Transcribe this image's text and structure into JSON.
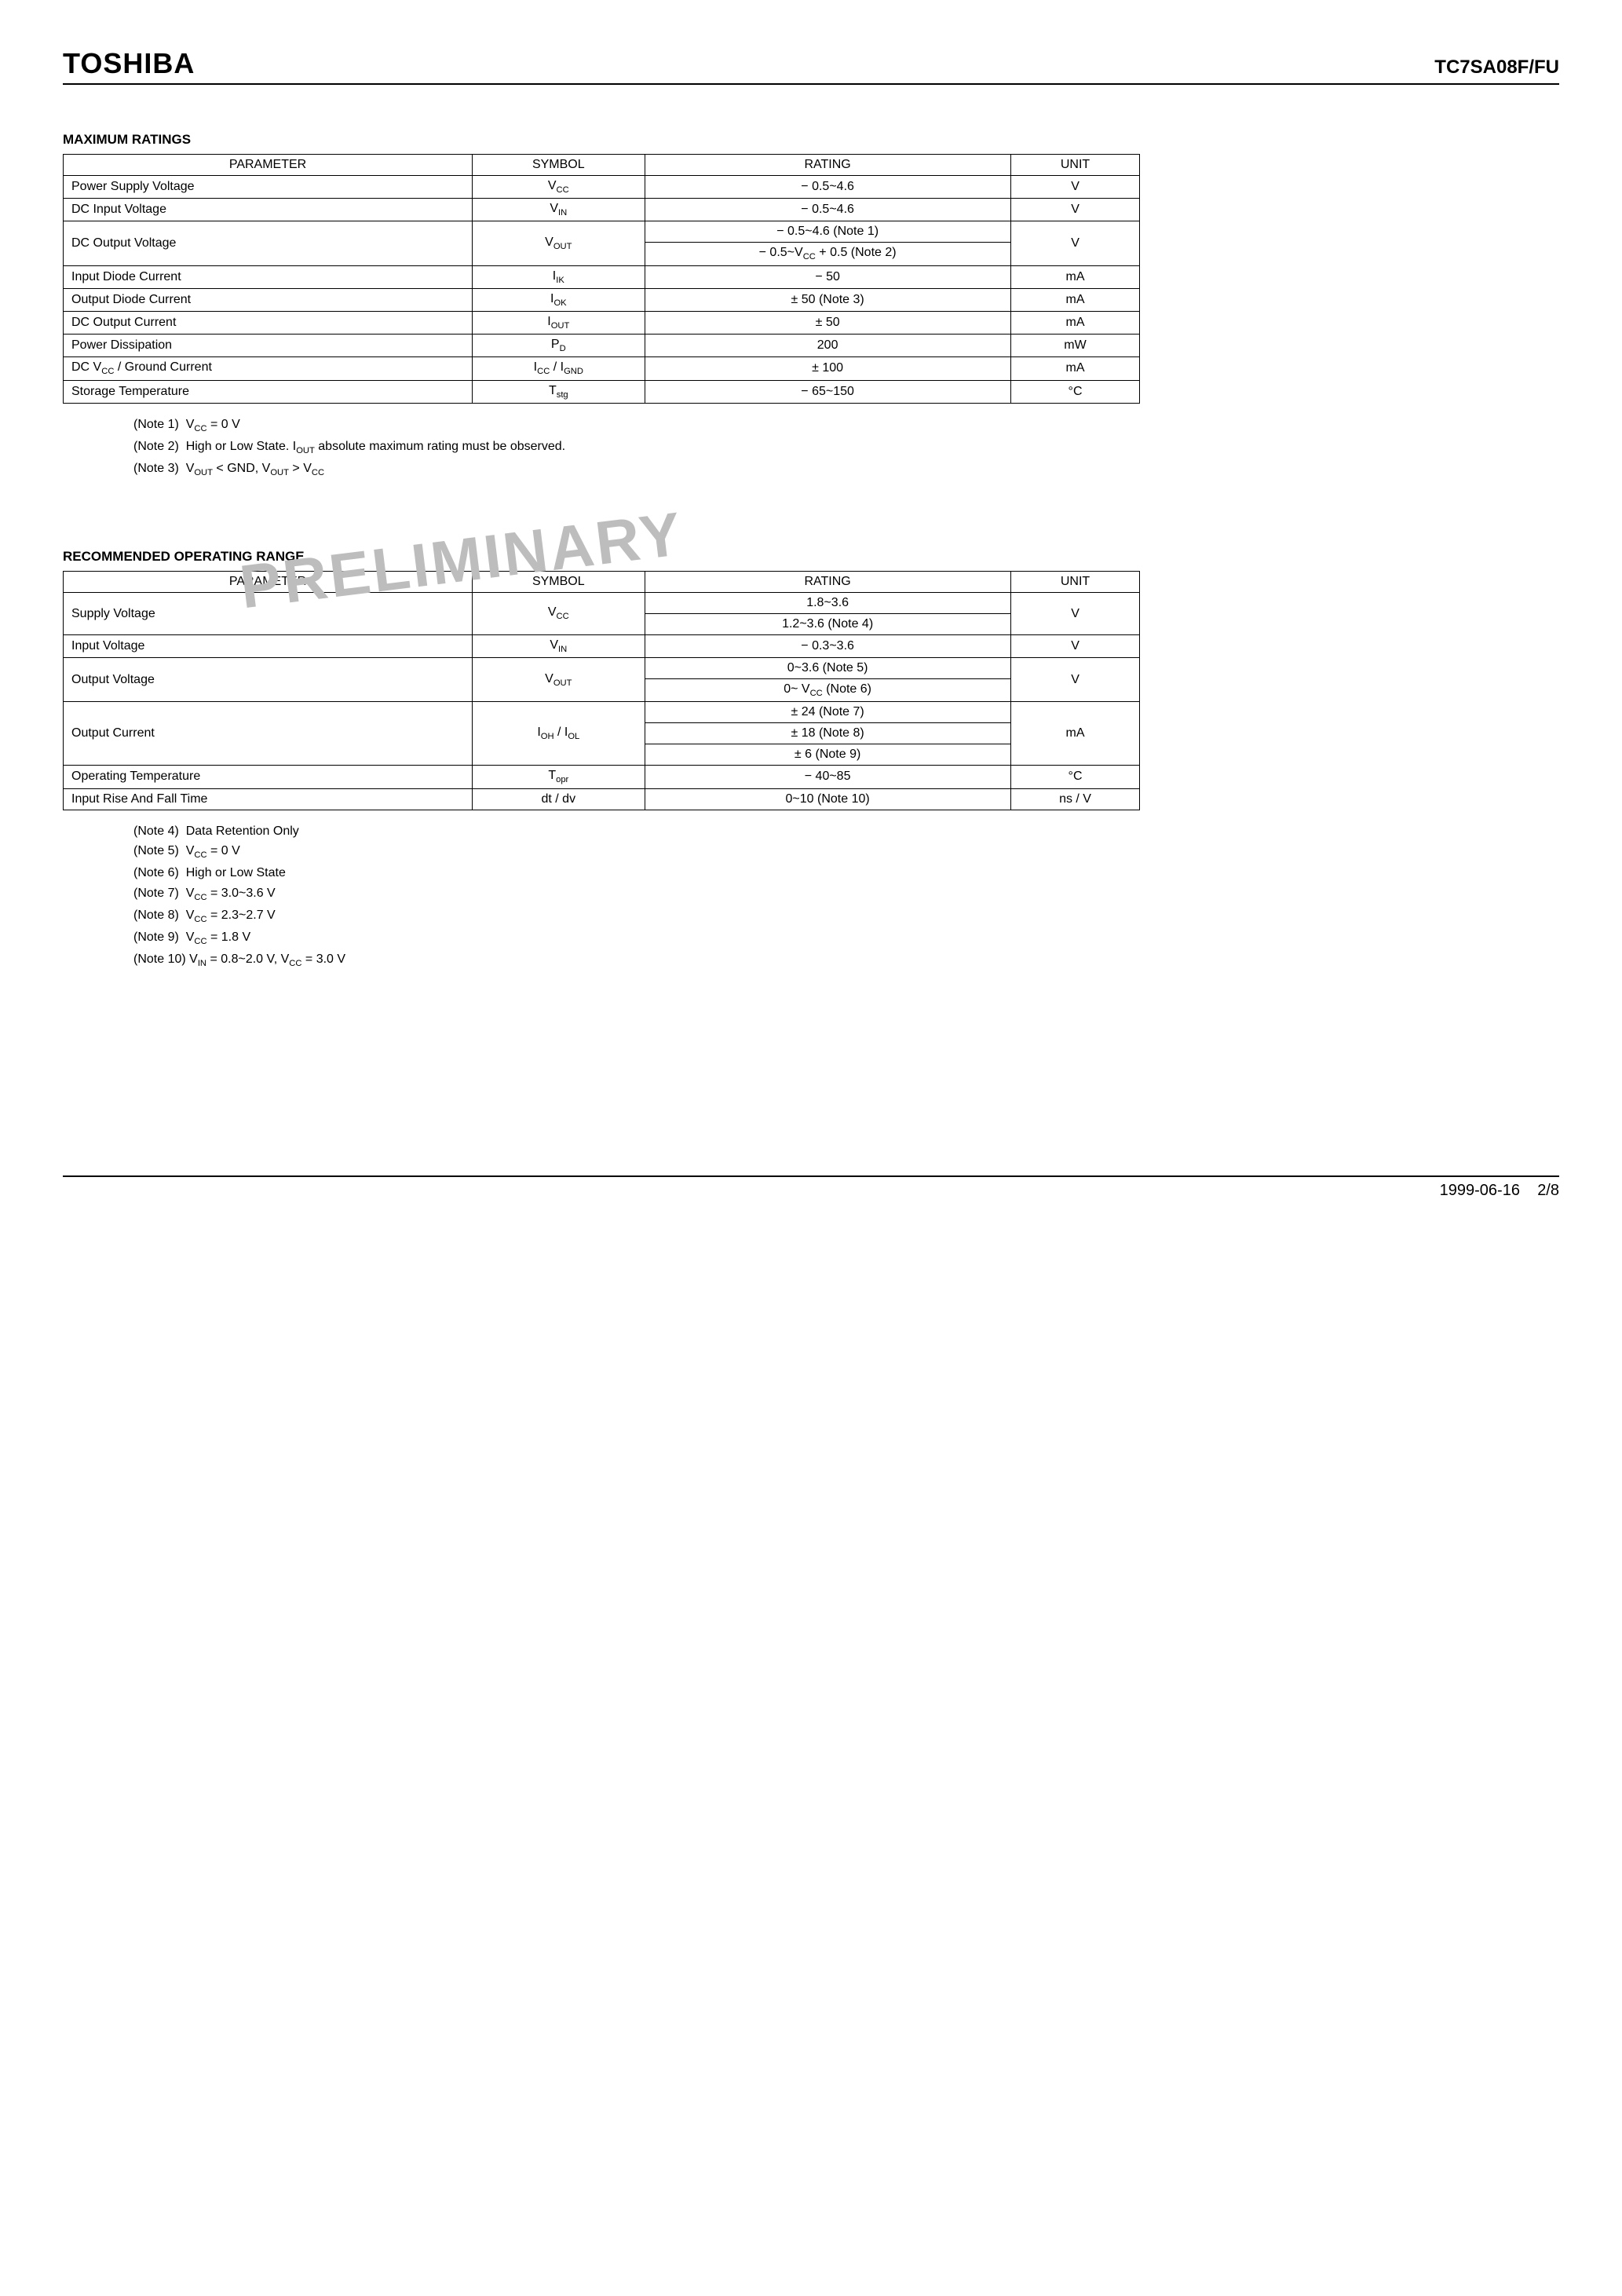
{
  "header": {
    "brand": "TOSHIBA",
    "partno": "TC7SA08F/FU"
  },
  "max_ratings": {
    "title": "MAXIMUM RATINGS",
    "headers": {
      "param": "PARAMETER",
      "symbol": "SYMBOL",
      "rating": "RATING",
      "unit": "UNIT"
    },
    "rows": [
      {
        "param": "Power Supply Voltage",
        "symbol": "V<sub>CC</sub>",
        "rating": "− 0.5~4.6",
        "unit": "V"
      },
      {
        "param": "DC Input Voltage",
        "symbol": "V<sub>IN</sub>",
        "rating": "− 0.5~4.6",
        "unit": "V"
      },
      {
        "param": "DC Output Voltage",
        "symbol": "V<sub>OUT</sub>",
        "rating_a": "− 0.5~4.6 (Note 1)",
        "rating_b": "− 0.5~V<sub>CC</sub> + 0.5 (Note 2)",
        "unit": "V",
        "split": true
      },
      {
        "param": "Input Diode Current",
        "symbol": "I<sub>IK</sub>",
        "rating": "− 50",
        "unit": "mA"
      },
      {
        "param": "Output Diode Current",
        "symbol": "I<sub>OK</sub>",
        "rating": "± 50 (Note 3)",
        "unit": "mA"
      },
      {
        "param": "DC Output Current",
        "symbol": "I<sub>OUT</sub>",
        "rating": "± 50",
        "unit": "mA"
      },
      {
        "param": "Power Dissipation",
        "symbol": "P<sub>D</sub>",
        "rating": "200",
        "unit": "mW"
      },
      {
        "param": "DC V<sub>CC</sub> / Ground Current",
        "symbol": "I<sub>CC</sub> / I<sub>GND</sub>",
        "rating": "± 100",
        "unit": "mA"
      },
      {
        "param": "Storage Temperature",
        "symbol": "T<sub>stg</sub>",
        "rating": "− 65~150",
        "unit": "°C"
      }
    ],
    "notes": [
      "(Note 1)&nbsp;&nbsp;V<sub>CC</sub> = 0 V",
      "(Note 2)&nbsp;&nbsp;High or Low State. I<sub>OUT</sub> absolute maximum rating must be observed.",
      "(Note 3)&nbsp;&nbsp;V<sub>OUT</sub> &lt; GND, V<sub>OUT</sub> &gt; V<sub>CC</sub>"
    ]
  },
  "watermark": "PRELIMINARY",
  "rec_range": {
    "title": "RECOMMENDED OPERATING RANGE",
    "headers": {
      "param": "PARAMETER",
      "symbol": "SYMBOL",
      "rating": "RATING",
      "unit": "UNIT"
    },
    "rows": [
      {
        "param": "Supply Voltage",
        "symbol": "V<sub>CC</sub>",
        "rating_a": "1.8~3.6",
        "rating_b": "1.2~3.6 (Note 4)",
        "unit": "V",
        "split": true
      },
      {
        "param": "Input Voltage",
        "symbol": "V<sub>IN</sub>",
        "rating": "− 0.3~3.6",
        "unit": "V"
      },
      {
        "param": "Output Voltage",
        "symbol": "V<sub>OUT</sub>",
        "rating_a": "0~3.6 (Note 5)",
        "rating_b": "0~ V<sub>CC</sub> (Note 6)",
        "unit": "V",
        "split": true
      },
      {
        "param": "Output Current",
        "symbol": "I<sub>OH</sub> / I<sub>OL</sub>",
        "rating_a": "± 24 (Note 7)",
        "rating_b": "± 18 (Note 8)",
        "rating_c": "± 6 (Note 9)",
        "unit": "mA",
        "split3": true
      },
      {
        "param": "Operating Temperature",
        "symbol": "T<sub>opr</sub>",
        "rating": "− 40~85",
        "unit": "°C"
      },
      {
        "param": "Input Rise And Fall Time",
        "symbol": "dt / dv",
        "rating": "0~10 (Note 10)",
        "unit": "ns / V"
      }
    ],
    "notes": [
      "(Note 4)&nbsp;&nbsp;Data Retention Only",
      "(Note 5)&nbsp;&nbsp;V<sub>CC</sub> = 0 V",
      "(Note 6)&nbsp;&nbsp;High or Low State",
      "(Note 7)&nbsp;&nbsp;V<sub>CC</sub> = 3.0~3.6 V",
      "(Note 8)&nbsp;&nbsp;V<sub>CC</sub> = 2.3~2.7 V",
      "(Note 9)&nbsp;&nbsp;V<sub>CC</sub> = 1.8 V",
      "(Note 10)&nbsp;V<sub>IN</sub> = 0.8~2.0 V, V<sub>CC</sub> = 3.0 V"
    ]
  },
  "footer": {
    "date": "1999-06-16",
    "page": "2/8"
  }
}
